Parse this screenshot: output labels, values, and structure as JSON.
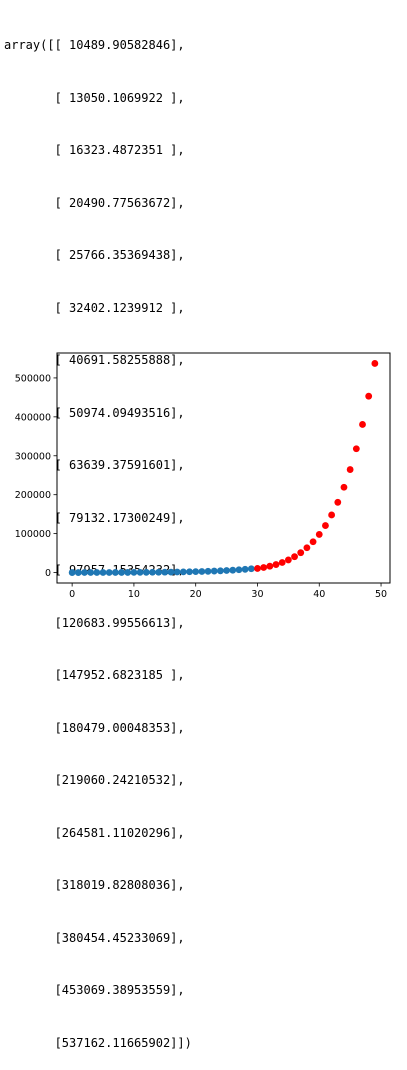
{
  "output": {
    "prefix": "array([",
    "suffix": "])",
    "rows": [
      "[ 10489.90582846],",
      "[ 13050.1069922 ],",
      "[ 16323.4872351 ],",
      "[ 20490.77563672],",
      "[ 25766.35369438],",
      "[ 32402.1239912 ],",
      "[ 40691.58255888],",
      "[ 50974.09493516],",
      "[ 63639.37591601],",
      "[ 79132.17300249],",
      "[ 97957.15354232],",
      "[120683.99556613],",
      "[147952.6823185 ],",
      "[180479.00048353],",
      "[219060.24210532],",
      "[264581.11020296],",
      "[318019.82808036],",
      "[380454.45233069],",
      "[453069.38953559],",
      "[537162.11665902]"
    ]
  },
  "chart_data": {
    "type": "scatter",
    "xlim": [
      -2.45,
      51.45
    ],
    "ylim": [
      -26858,
      564020
    ],
    "x_ticks": [
      0,
      10,
      20,
      30,
      40,
      50
    ],
    "x_tick_labels": [
      "0",
      "10",
      "20",
      "30",
      "40",
      "50"
    ],
    "y_ticks": [
      0,
      100000,
      200000,
      300000,
      400000,
      500000
    ],
    "y_tick_labels": [
      "0",
      "100000",
      "200000",
      "300000",
      "400000",
      "500000"
    ],
    "grid": false,
    "series": [
      {
        "color": "#1f77b4",
        "x": [
          0,
          1,
          2,
          3,
          4,
          5,
          6,
          7,
          8,
          9,
          10,
          11,
          12,
          13,
          14,
          15,
          16,
          17,
          18,
          19,
          20,
          21,
          22,
          23,
          24,
          25,
          26,
          27,
          28,
          29
        ],
        "y": [
          10,
          25,
          45,
          70,
          100,
          135,
          175,
          220,
          270,
          330,
          400,
          480,
          575,
          690,
          825,
          985,
          1170,
          1390,
          1650,
          1955,
          2310,
          2725,
          3210,
          3780,
          4440,
          5210,
          6100,
          7140,
          8340,
          9730
        ]
      },
      {
        "color": "#ff0000",
        "x": [
          30,
          31,
          32,
          33,
          34,
          35,
          36,
          37,
          38,
          39,
          40,
          41,
          42,
          43,
          44,
          45,
          46,
          47,
          48,
          49
        ],
        "y": [
          10489.90582846,
          13050.1069922,
          16323.4872351,
          20490.77563672,
          25766.35369438,
          32402.1239912,
          40691.58255888,
          50974.09493516,
          63639.37591601,
          79132.17300249,
          97957.15354232,
          120683.99556613,
          147952.6823185,
          180479.00048353,
          219060.24210532,
          264581.11020296,
          318019.82808036,
          380454.45233069,
          453069.38953559,
          537162.11665902
        ]
      }
    ]
  }
}
